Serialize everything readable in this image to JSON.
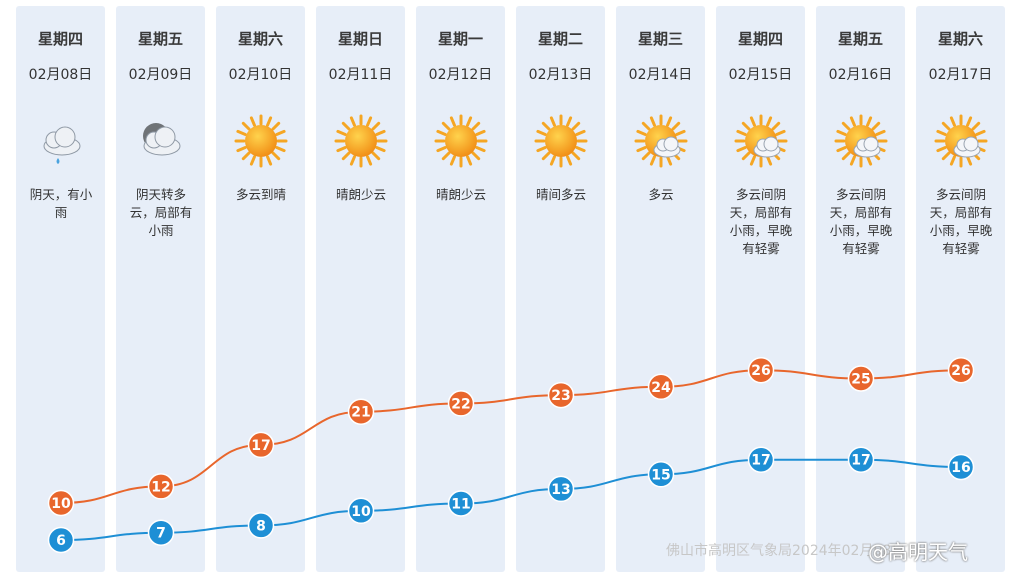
{
  "days": [
    {
      "weekday": "星期四",
      "date": "02月08日",
      "icon": "cloud-rain-icon",
      "desc": "阴天，有小雨"
    },
    {
      "weekday": "星期五",
      "date": "02月09日",
      "icon": "dark-cloud-icon",
      "desc": "阴天转多云，局部有小雨"
    },
    {
      "weekday": "星期六",
      "date": "02月10日",
      "icon": "sun-icon",
      "desc": "多云到晴"
    },
    {
      "weekday": "星期日",
      "date": "02月11日",
      "icon": "sun-icon",
      "desc": "晴朗少云"
    },
    {
      "weekday": "星期一",
      "date": "02月12日",
      "icon": "sun-icon",
      "desc": "晴朗少云"
    },
    {
      "weekday": "星期二",
      "date": "02月13日",
      "icon": "sun-icon",
      "desc": "晴间多云"
    },
    {
      "weekday": "星期三",
      "date": "02月14日",
      "icon": "sun-cloud-icon",
      "desc": "多云"
    },
    {
      "weekday": "星期四",
      "date": "02月15日",
      "icon": "sun-cloud-icon",
      "desc": "多云间阴天，局部有小雨，早晚有轻雾"
    },
    {
      "weekday": "星期五",
      "date": "02月16日",
      "icon": "sun-cloud-icon",
      "desc": "多云间阴天，局部有小雨，早晚有轻雾"
    },
    {
      "weekday": "星期六",
      "date": "02月17日",
      "icon": "sun-cloud-icon",
      "desc": "多云间阴天，局部有小雨，早晚有轻雾"
    }
  ],
  "chart_data": {
    "type": "line",
    "categories": [
      "02月08日",
      "02月09日",
      "02月10日",
      "02月11日",
      "02月12日",
      "02月13日",
      "02月14日",
      "02月15日",
      "02月16日",
      "02月17日"
    ],
    "series": [
      {
        "name": "",
        "values": [
          10,
          12,
          17,
          21,
          22,
          23,
          24,
          26,
          25,
          26
        ],
        "color": "#e8662c"
      },
      {
        "name": "",
        "values": [
          6,
          7,
          8,
          10,
          11,
          13,
          15,
          17,
          17,
          16
        ],
        "color": "#1e8fd5"
      }
    ]
  },
  "watermark": "佛山市高明区气象局2024年02月08日",
  "handle": "@高明天气"
}
